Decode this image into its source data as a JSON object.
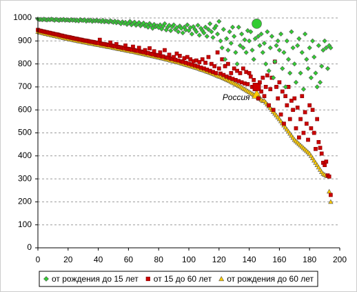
{
  "chart_data": {
    "type": "scatter",
    "x": [
      0,
      1,
      2,
      3,
      4,
      5,
      6,
      7,
      8,
      9,
      10,
      11,
      12,
      13,
      14,
      15,
      16,
      17,
      18,
      19,
      20,
      21,
      22,
      23,
      24,
      25,
      26,
      27,
      28,
      29,
      30,
      31,
      32,
      33,
      34,
      35,
      36,
      37,
      38,
      39,
      40,
      41,
      42,
      43,
      44,
      45,
      46,
      47,
      48,
      49,
      50,
      51,
      52,
      53,
      54,
      55,
      56,
      57,
      58,
      59,
      60,
      61,
      62,
      63,
      64,
      65,
      66,
      67,
      68,
      69,
      70,
      71,
      72,
      73,
      74,
      75,
      76,
      77,
      78,
      79,
      80,
      81,
      82,
      83,
      84,
      85,
      86,
      87,
      88,
      89,
      90,
      91,
      92,
      93,
      94,
      95,
      96,
      97,
      98,
      99,
      100,
      101,
      102,
      103,
      104,
      105,
      106,
      107,
      108,
      109,
      110,
      111,
      112,
      113,
      114,
      115,
      116,
      117,
      118,
      119,
      120,
      121,
      122,
      123,
      124,
      125,
      126,
      127,
      128,
      129,
      130,
      131,
      132,
      133,
      134,
      135,
      136,
      137,
      138,
      139,
      140,
      141,
      142,
      143,
      144,
      145,
      146,
      147,
      148,
      149,
      150,
      151,
      152,
      153,
      154,
      155,
      156,
      157,
      158,
      159,
      160,
      161,
      162,
      163,
      164,
      165,
      166,
      167,
      168,
      169,
      170,
      171,
      172,
      173,
      174,
      175,
      176,
      177,
      178,
      179,
      180,
      181,
      182,
      183,
      184,
      185,
      186,
      187,
      188,
      189,
      190,
      191,
      192,
      193,
      194
    ],
    "series": [
      {
        "name": "от рождения до 15 лет",
        "color": "#33cc33",
        "marker": "diamond",
        "values": [
          995,
          993,
          994,
          992,
          995,
          993,
          991,
          994,
          992,
          995,
          993,
          990,
          994,
          992,
          989,
          993,
          991,
          994,
          990,
          992,
          991,
          989,
          993,
          990,
          992,
          988,
          991,
          987,
          993,
          990,
          989,
          992,
          986,
          990,
          988,
          991,
          985,
          989,
          987,
          990,
          986,
          988,
          984,
          990,
          983,
          987,
          985,
          982,
          988,
          984,
          981,
          986,
          979,
          984,
          980,
          975,
          983,
          977,
          981,
          972,
          978,
          985,
          970,
          976,
          982,
          968,
          974,
          980,
          966,
          972,
          978,
          965,
          971,
          960,
          976,
          968,
          955,
          972,
          962,
          966,
          958,
          970,
          952,
          964,
          975,
          948,
          960,
          968,
          945,
          962,
          970,
          950,
          958,
          940,
          965,
          955,
          935,
          960,
          948,
          970,
          945,
          958,
          930,
          962,
          950,
          940,
          968,
          925,
          955,
          945,
          935,
          960,
          920,
          950,
          975,
          940,
          915,
          955,
          965,
          930,
          985,
          900,
          870,
          950,
          820,
          910,
          860,
          940,
          890,
          960,
          920,
          850,
          800,
          960,
          880,
          930,
          870,
          905,
          850,
          945,
          900,
          940,
          860,
          820,
          910,
          975,
          920,
          880,
          930,
          850,
          890,
          800,
          940,
          770,
          870,
          920,
          740,
          810,
          880,
          900,
          860,
          930,
          780,
          850,
          700,
          900,
          820,
          760,
          940,
          870,
          800,
          720,
          880,
          910,
          760,
          850,
          690,
          930,
          820,
          780,
          870,
          740,
          900,
          830,
          760,
          700,
          880,
          720,
          790,
          860,
          900,
          870,
          780,
          880,
          870
        ]
      },
      {
        "name": "от 15 до 60 лет",
        "color": "#cc0000",
        "marker": "square",
        "values": [
          948,
          945,
          944,
          942,
          941,
          939,
          938,
          936,
          935,
          933,
          932,
          930,
          929,
          928,
          926,
          924,
          923,
          921,
          920,
          918,
          917,
          916,
          914,
          913,
          911,
          910,
          909,
          907,
          906,
          905,
          903,
          902,
          901,
          900,
          898,
          897,
          896,
          895,
          893,
          892,
          891,
          905,
          888,
          887,
          886,
          885,
          883,
          882,
          893,
          880,
          878,
          877,
          886,
          874,
          873,
          872,
          870,
          869,
          880,
          866,
          865,
          864,
          862,
          875,
          860,
          858,
          857,
          870,
          854,
          853,
          851,
          860,
          848,
          847,
          868,
          844,
          842,
          855,
          839,
          838,
          836,
          850,
          833,
          832,
          860,
          828,
          827,
          840,
          823,
          822,
          830,
          818,
          845,
          815,
          835,
          811,
          809,
          825,
          805,
          830,
          801,
          820,
          797,
          812,
          793,
          815,
          789,
          808,
          784,
          820,
          780,
          805,
          775,
          830,
          770,
          800,
          765,
          790,
          760,
          850,
          780,
          758,
          820,
          752,
          790,
          745,
          800,
          740,
          760,
          735,
          780,
          730,
          770,
          725,
          760,
          720,
          780,
          715,
          765,
          712,
          760,
          745,
          700,
          730,
          690,
          700,
          650,
          720,
          680,
          740,
          660,
          700,
          750,
          620,
          690,
          740,
          600,
          810,
          700,
          650,
          720,
          580,
          680,
          540,
          660,
          620,
          700,
          560,
          640,
          600,
          650,
          520,
          610,
          480,
          560,
          660,
          500,
          590,
          540,
          470,
          620,
          520,
          600,
          500,
          430,
          560,
          460,
          435,
          410,
          370,
          360,
          375,
          315,
          310,
          230
        ]
      },
      {
        "name": "от рождения до 60 лет",
        "color": "#ffcc00",
        "marker": "triangle",
        "values": [
          940,
          938,
          936,
          935,
          933,
          931,
          930,
          928,
          927,
          925,
          924,
          922,
          921,
          919,
          918,
          916,
          915,
          913,
          912,
          910,
          909,
          907,
          906,
          905,
          903,
          902,
          901,
          899,
          898,
          897,
          895,
          894,
          893,
          892,
          890,
          889,
          888,
          887,
          885,
          884,
          883,
          882,
          880,
          879,
          878,
          877,
          875,
          874,
          873,
          872,
          870,
          869,
          868,
          866,
          865,
          864,
          862,
          861,
          860,
          858,
          857,
          856,
          854,
          853,
          852,
          850,
          849,
          847,
          846,
          845,
          843,
          842,
          840,
          839,
          837,
          836,
          834,
          833,
          831,
          830,
          828,
          827,
          825,
          824,
          822,
          820,
          819,
          817,
          815,
          814,
          812,
          810,
          808,
          807,
          805,
          803,
          801,
          799,
          797,
          795,
          793,
          791,
          789,
          787,
          785,
          783,
          781,
          779,
          776,
          774,
          772,
          770,
          767,
          765,
          762,
          760,
          757,
          755,
          752,
          749,
          746,
          744,
          741,
          738,
          735,
          732,
          729,
          726,
          722,
          719,
          716,
          712,
          709,
          705,
          702,
          698,
          694,
          690,
          686,
          682,
          678,
          674,
          670,
          666,
          662,
          667,
          654,
          649,
          644,
          639,
          640,
          632,
          624,
          616,
          608,
          600,
          592,
          584,
          576,
          568,
          560,
          551,
          542,
          533,
          524,
          515,
          506,
          497,
          488,
          479,
          470,
          464,
          458,
          452,
          446,
          440,
          434,
          428,
          422,
          416,
          410,
          400,
          390,
          380,
          370,
          360,
          350,
          340,
          330,
          322,
          318,
          314,
          312,
          245,
          200
        ]
      }
    ],
    "annotation": {
      "text": "Россия",
      "index": 145
    },
    "xlim": [
      0,
      200
    ],
    "xticks": [
      0,
      20,
      40,
      60,
      80,
      100,
      120,
      140,
      160,
      180,
      200
    ],
    "ylim": [
      0,
      1000
    ],
    "yticks": [
      0,
      100,
      200,
      300,
      400,
      500,
      600,
      700,
      800,
      900,
      1000
    ],
    "grid": true,
    "legend": "bottom"
  }
}
